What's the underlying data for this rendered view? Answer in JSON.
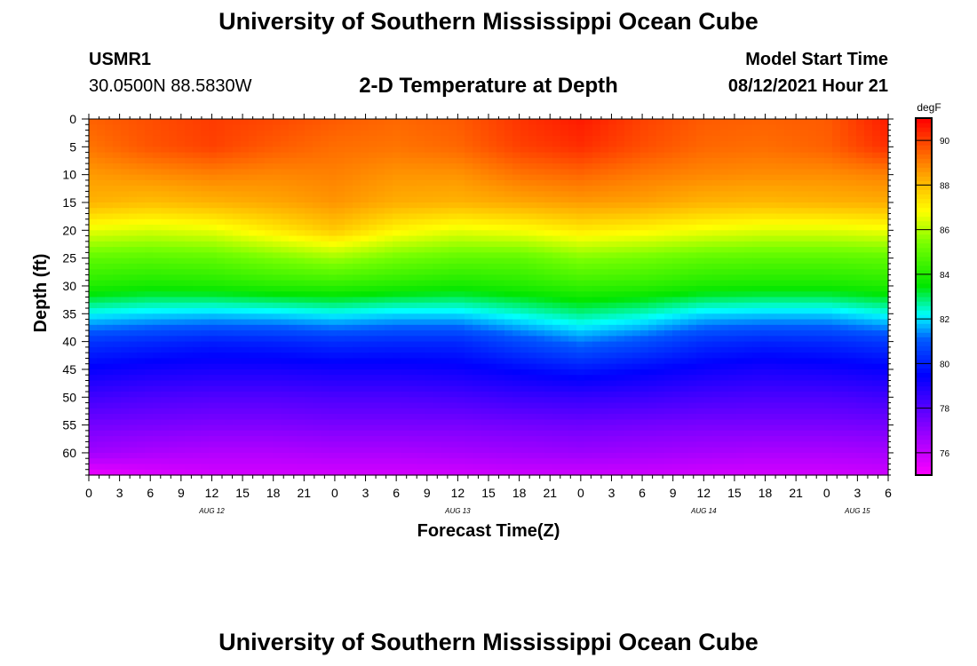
{
  "page": {
    "title_top": "University of Southern Mississippi Ocean Cube",
    "title_bottom": "University of Southern Mississippi Ocean Cube",
    "station_id": "USMR1",
    "station_coords": "30.0500N  88.5830W",
    "start_label": "Model Start Time",
    "start_value": "08/12/2021 Hour 21"
  },
  "chart_data": {
    "type": "heatmap",
    "title": "2-D Temperature at Depth",
    "xlabel": "Forecast Time(Z)",
    "ylabel": "Depth (ft)",
    "xlim": [
      0,
      78
    ],
    "ylim": [
      64,
      0
    ],
    "x_ticks": [
      {
        "h": 0,
        "label": "0"
      },
      {
        "h": 3,
        "label": "3"
      },
      {
        "h": 6,
        "label": "6"
      },
      {
        "h": 9,
        "label": "9"
      },
      {
        "h": 12,
        "label": "12"
      },
      {
        "h": 15,
        "label": "15"
      },
      {
        "h": 18,
        "label": "18"
      },
      {
        "h": 21,
        "label": "21"
      },
      {
        "h": 24,
        "label": "0"
      },
      {
        "h": 27,
        "label": "3"
      },
      {
        "h": 30,
        "label": "6"
      },
      {
        "h": 33,
        "label": "9"
      },
      {
        "h": 36,
        "label": "12"
      },
      {
        "h": 39,
        "label": "15"
      },
      {
        "h": 42,
        "label": "18"
      },
      {
        "h": 45,
        "label": "21"
      },
      {
        "h": 48,
        "label": "0"
      },
      {
        "h": 51,
        "label": "3"
      },
      {
        "h": 54,
        "label": "6"
      },
      {
        "h": 57,
        "label": "9"
      },
      {
        "h": 60,
        "label": "12"
      },
      {
        "h": 63,
        "label": "15"
      },
      {
        "h": 66,
        "label": "18"
      },
      {
        "h": 69,
        "label": "21"
      },
      {
        "h": 72,
        "label": "0"
      },
      {
        "h": 75,
        "label": "3"
      },
      {
        "h": 78,
        "label": "6"
      }
    ],
    "day_labels": [
      {
        "h": 12,
        "label": "AUG 12"
      },
      {
        "h": 36,
        "label": "AUG 13"
      },
      {
        "h": 60,
        "label": "AUG 14"
      },
      {
        "h": 75,
        "label": "AUG 15"
      }
    ],
    "y_ticks": [
      0,
      5,
      10,
      15,
      20,
      25,
      30,
      35,
      40,
      45,
      50,
      55,
      60
    ],
    "colorbar": {
      "unit": "degF",
      "min": 75,
      "max": 91,
      "tick_labels": [
        76,
        78,
        80,
        82,
        84,
        86,
        88,
        90
      ]
    },
    "temperature_grid": {
      "depths": [
        0,
        5,
        10,
        15,
        20,
        25,
        30,
        35,
        40,
        45,
        50,
        55,
        60,
        64
      ],
      "hours": [
        0,
        6,
        12,
        18,
        24,
        30,
        36,
        42,
        48,
        54,
        60,
        66,
        72,
        78
      ],
      "values": [
        [
          89.5,
          89.8,
          90.1,
          89.9,
          89.6,
          89.4,
          89.6,
          90.2,
          90.6,
          90.0,
          89.6,
          89.5,
          89.6,
          90.6
        ],
        [
          89.2,
          89.7,
          90.0,
          89.6,
          89.3,
          89.2,
          89.4,
          90.0,
          90.3,
          89.8,
          89.4,
          89.3,
          89.5,
          90.3
        ],
        [
          88.6,
          88.8,
          89.0,
          88.9,
          89.0,
          88.7,
          88.7,
          89.2,
          89.4,
          89.1,
          88.9,
          88.8,
          88.8,
          89.0
        ],
        [
          88.2,
          88.0,
          88.2,
          88.4,
          88.7,
          88.3,
          88.2,
          88.4,
          88.6,
          88.5,
          88.2,
          88.1,
          88.2,
          88.3
        ],
        [
          86.6,
          86.4,
          86.6,
          87.2,
          87.8,
          87.0,
          86.6,
          86.8,
          87.2,
          87.0,
          86.7,
          86.5,
          86.5,
          86.7
        ],
        [
          85.0,
          84.9,
          85.0,
          85.4,
          85.8,
          85.3,
          85.0,
          85.0,
          85.5,
          85.3,
          85.0,
          84.9,
          84.9,
          85.0
        ],
        [
          84.0,
          83.8,
          83.9,
          84.1,
          84.2,
          84.0,
          83.8,
          84.0,
          84.3,
          84.2,
          83.9,
          83.8,
          83.8,
          84.0
        ],
        [
          82.2,
          82.0,
          81.9,
          82.0,
          82.2,
          82.0,
          82.0,
          82.4,
          82.8,
          82.5,
          82.0,
          81.9,
          81.9,
          82.3
        ],
        [
          80.4,
          80.2,
          80.0,
          80.1,
          80.3,
          80.2,
          80.2,
          80.8,
          81.3,
          80.9,
          80.3,
          80.1,
          80.2,
          80.5
        ],
        [
          79.4,
          79.2,
          79.1,
          79.1,
          79.2,
          79.2,
          79.3,
          79.6,
          79.9,
          79.6,
          79.3,
          79.1,
          79.2,
          79.4
        ],
        [
          78.4,
          78.2,
          78.1,
          78.1,
          78.2,
          78.2,
          78.3,
          78.5,
          78.6,
          78.5,
          78.3,
          78.2,
          78.2,
          78.4
        ],
        [
          77.5,
          77.4,
          77.3,
          77.3,
          77.4,
          77.4,
          77.4,
          77.5,
          77.6,
          77.5,
          77.4,
          77.4,
          77.4,
          77.5
        ],
        [
          76.7,
          76.5,
          76.4,
          76.4,
          76.5,
          76.5,
          76.6,
          76.7,
          76.8,
          76.7,
          76.6,
          76.5,
          76.5,
          76.6
        ],
        [
          75.3,
          75.6,
          75.8,
          75.8,
          75.8,
          75.8,
          75.8,
          75.9,
          75.9,
          75.9,
          75.8,
          75.8,
          75.8,
          75.9
        ]
      ]
    }
  }
}
